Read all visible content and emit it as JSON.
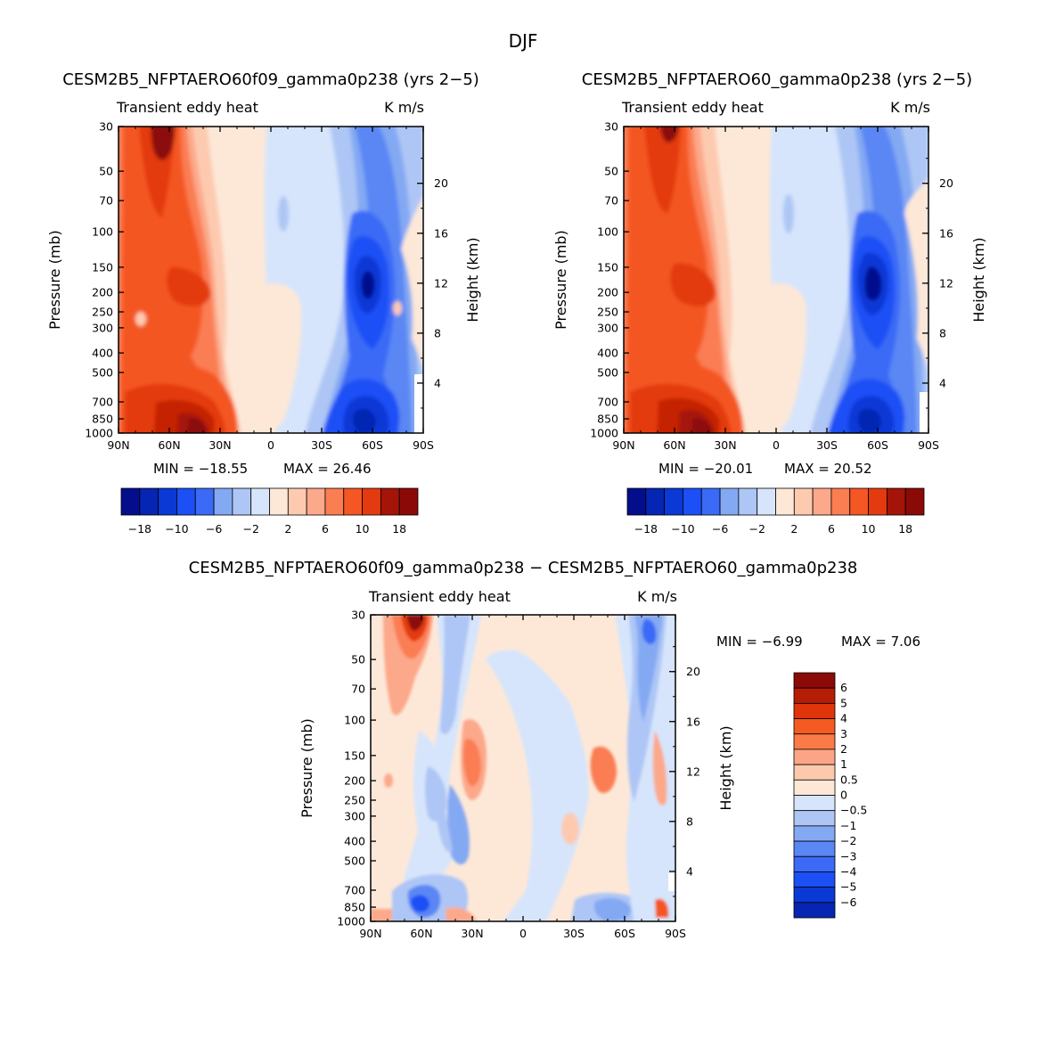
{
  "figure_title": "DJF",
  "chart_data": [
    {
      "type": "heatmap",
      "subtype": "latitude-pressure contour",
      "title": "CESM2B5_NFPTAERO60f09_gamma0p238 (yrs 2−5)",
      "left_label": "Transient eddy heat",
      "right_label": "K m/s",
      "xlabel": "",
      "ylabel": "Pressure (mb)",
      "ylabel_right": "Height (km)",
      "x_ticks": [
        "90N",
        "60N",
        "30N",
        "0",
        "30S",
        "60S",
        "90S"
      ],
      "y_ticks": [
        "30",
        "50",
        "70",
        "100",
        "150",
        "200",
        "250",
        "300",
        "400",
        "500",
        "700",
        "850",
        "1000"
      ],
      "height_ticks": [
        "4",
        "8",
        "12",
        "16",
        "20"
      ],
      "min_text": "MIN = −18.55",
      "max_text": "MAX = 26.46",
      "min_value": -18.55,
      "max_value": 26.46,
      "levels": [
        -18,
        -14,
        -10,
        -8,
        -6,
        -4,
        -2,
        0,
        2,
        4,
        6,
        8,
        10,
        14,
        18
      ],
      "colorbar_labels": [
        "−18",
        "−10",
        "−6",
        "−2",
        "2",
        "6",
        "10",
        "18"
      ],
      "features": [
        {
          "name": "NH positive maximum aloft",
          "lat": 64,
          "pressure": 30,
          "value": 26
        },
        {
          "name": "NH upper-tropospheric maximum",
          "lat": 58,
          "pressure": 200,
          "value": 12
        },
        {
          "name": "NH lower-tropospheric maximum",
          "lat": 42,
          "pressure": 850,
          "value": 22
        },
        {
          "name": "SH jet-level minimum",
          "lat": -52,
          "pressure": 200,
          "value": -18
        },
        {
          "name": "SH near-surface minimum",
          "lat": -50,
          "pressure": 850,
          "value": -14
        }
      ]
    },
    {
      "type": "heatmap",
      "subtype": "latitude-pressure contour",
      "title": "CESM2B5_NFPTAERO60_gamma0p238 (yrs 2−5)",
      "left_label": "Transient eddy heat",
      "right_label": "K m/s",
      "xlabel": "",
      "ylabel": "Pressure (mb)",
      "ylabel_right": "Height (km)",
      "x_ticks": [
        "90N",
        "60N",
        "30N",
        "0",
        "30S",
        "60S",
        "90S"
      ],
      "y_ticks": [
        "30",
        "50",
        "70",
        "100",
        "150",
        "200",
        "250",
        "300",
        "400",
        "500",
        "700",
        "850",
        "1000"
      ],
      "height_ticks": [
        "4",
        "8",
        "12",
        "16",
        "20"
      ],
      "min_text": "MIN = −20.01",
      "max_text": "MAX = 20.52",
      "min_value": -20.01,
      "max_value": 20.52,
      "levels": [
        -18,
        -14,
        -10,
        -8,
        -6,
        -4,
        -2,
        0,
        2,
        4,
        6,
        8,
        10,
        14,
        18
      ],
      "colorbar_labels": [
        "−18",
        "−10",
        "−6",
        "−2",
        "2",
        "6",
        "10",
        "18"
      ],
      "features": [
        {
          "name": "NH positive maximum aloft",
          "lat": 66,
          "pressure": 30,
          "value": 20
        },
        {
          "name": "NH upper-tropospheric maximum",
          "lat": 58,
          "pressure": 200,
          "value": 12
        },
        {
          "name": "NH lower-tropospheric maximum",
          "lat": 42,
          "pressure": 850,
          "value": 20
        },
        {
          "name": "SH jet-level minimum",
          "lat": -52,
          "pressure": 200,
          "value": -18
        },
        {
          "name": "SH near-surface minimum",
          "lat": -50,
          "pressure": 850,
          "value": -14
        }
      ]
    },
    {
      "type": "heatmap",
      "subtype": "latitude-pressure contour (difference)",
      "title": "CESM2B5_NFPTAERO60f09_gamma0p238 − CESM2B5_NFPTAERO60_gamma0p238",
      "left_label": "Transient eddy heat",
      "right_label": "K m/s",
      "xlabel": "",
      "ylabel": "Pressure (mb)",
      "ylabel_right": "Height (km)",
      "x_ticks": [
        "90N",
        "60N",
        "30N",
        "0",
        "30S",
        "60S",
        "90S"
      ],
      "y_ticks": [
        "30",
        "50",
        "70",
        "100",
        "150",
        "200",
        "250",
        "300",
        "400",
        "500",
        "700",
        "850",
        "1000"
      ],
      "height_ticks": [
        "4",
        "8",
        "12",
        "16",
        "20"
      ],
      "min_text": "MIN = −6.99",
      "max_text": "MAX = 7.06",
      "min_value": -6.99,
      "max_value": 7.06,
      "levels": [
        -6,
        -5,
        -4,
        -3,
        -2,
        -1,
        -0.5,
        0,
        0.5,
        1,
        2,
        3,
        4,
        5,
        6
      ],
      "colorbar_labels": [
        "6",
        "5",
        "4",
        "3",
        "2",
        "1",
        "0.5",
        "0",
        "−0.5",
        "−1",
        "−2",
        "−3",
        "−4",
        "−5",
        "−6"
      ],
      "features": [
        {
          "name": "NH stratospheric positive",
          "lat": 64,
          "pressure": 30,
          "value": 7
        },
        {
          "name": "Subtropical NH positive",
          "lat": 28,
          "pressure": 170,
          "value": 3
        },
        {
          "name": "SH positive",
          "lat": -50,
          "pressure": 180,
          "value": 3
        },
        {
          "name": "SH stratospheric negative",
          "lat": -76,
          "pressure": 30,
          "value": -5
        },
        {
          "name": "NH midlatitude negative",
          "lat": 56,
          "pressure": 900,
          "value": -4
        }
      ]
    }
  ],
  "colors": {
    "blue_scale": [
      "#040e8c",
      "#0525b2",
      "#0a39d6",
      "#1c4ff5",
      "#3a6af6",
      "#5a87f4",
      "#84a9f3",
      "#aec6f5",
      "#d6e5fb"
    ],
    "red_scale": [
      "#fde8d8",
      "#fdcab0",
      "#fca88a",
      "#fb7d52",
      "#f45624",
      "#e33b0f",
      "#c42405",
      "#a51408",
      "#8b0a07"
    ],
    "diff_colorbar_top_to_bottom": [
      "#8b0a07",
      "#b51e05",
      "#e0350a",
      "#f55a22",
      "#fa7b47",
      "#fca586",
      "#fdc9ad",
      "#fde8d8",
      "#d6e5fb",
      "#aec6f5",
      "#84a9f3",
      "#5a87f4",
      "#3a6af6",
      "#1c4ff5",
      "#0a39d6",
      "#0525b2",
      "#040e8c"
    ]
  }
}
